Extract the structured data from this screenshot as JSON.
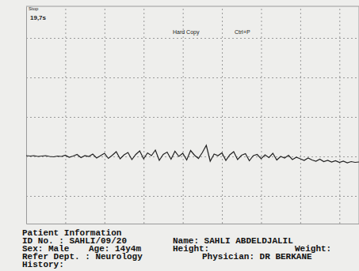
{
  "chart_data": {
    "type": "line",
    "annotations": [
      "Stop",
      "19,7s",
      "Hard Copy",
      "Ctrl+P"
    ],
    "x": [
      0,
      0.1,
      0.2,
      0.3,
      0.4,
      0.5,
      0.6,
      0.7,
      0.8,
      0.9,
      1,
      1.1,
      1.2,
      1.3,
      1.4,
      1.5,
      1.6,
      1.7,
      1.8,
      1.9,
      2,
      2.1,
      2.2,
      2.3,
      2.4,
      2.5,
      2.6,
      2.7,
      2.8,
      2.9,
      3,
      3.1,
      3.2,
      3.3,
      3.4,
      3.5,
      3.6,
      3.7,
      3.8,
      3.9,
      4,
      4.1,
      4.2,
      4.3,
      4.4,
      4.5,
      4.6,
      4.7,
      4.8,
      4.9,
      5,
      5.1,
      5.2,
      5.3,
      5.4,
      5.5,
      5.6,
      5.7,
      5.8,
      5.9,
      6,
      6.1,
      6.2,
      6.3,
      6.4,
      6.5,
      6.6,
      6.7,
      6.8,
      6.9,
      7,
      7.1,
      7.2,
      7.3,
      7.4,
      7.5,
      7.6,
      7.7,
      7.8,
      7.9,
      8,
      8.1,
      8.2,
      8.3,
      8.4,
      8.5
    ],
    "values": [
      0.02,
      0.01,
      0.02,
      0,
      0.01,
      0.02,
      0,
      -0.01,
      0.01,
      0,
      0.03,
      -0.02,
      0.01,
      0.05,
      -0.03,
      0.02,
      0,
      0.06,
      -0.04,
      0.02,
      0.08,
      -0.05,
      0.03,
      0.12,
      -0.06,
      0.04,
      0.1,
      -0.08,
      0.05,
      0.14,
      -0.06,
      0.09,
      0.02,
      0.16,
      -0.1,
      0.05,
      0.11,
      -0.07,
      0.13,
      0,
      0.08,
      -0.09,
      0.15,
      0.03,
      -0.05,
      0.1,
      0.28,
      -0.12,
      0.06,
      0.02,
      0.09,
      -0.1,
      0.04,
      0.12,
      -0.08,
      0.03,
      0.07,
      -0.11,
      0.02,
      0.05,
      -0.06,
      0.04,
      -0.03,
      0.08,
      -0.09,
      0,
      -0.04,
      0.03,
      -0.08,
      -0.02,
      -0.06,
      -0.1,
      -0.04,
      -0.09,
      -0.12,
      -0.07,
      -0.13,
      -0.1,
      -0.14,
      -0.11,
      -0.15,
      -0.12,
      -0.16,
      -0.13,
      -0.15,
      -0.14
    ],
    "color": "#222222",
    "xlim": [
      0,
      8.5
    ],
    "xticks": [
      1,
      2,
      3,
      4,
      5,
      6,
      7,
      8
    ],
    "ylim": [
      -1.7,
      3.8
    ],
    "yticks": [
      -1,
      0,
      1,
      2,
      3
    ],
    "grid": true,
    "tick_labels": false
  },
  "patient_info": {
    "title": "Patient Information",
    "rows": [
      [
        "ID No. : SAHLI/09/20",
        "Name: SAHLI ABDELDJALIL"
      ],
      [
        "Sex: Male",
        "Age: 14y4m",
        "Height:",
        "Weight:"
      ],
      [
        "Refer Dept. : Neurology",
        "Physician: DR BERKANE"
      ],
      [
        "History:"
      ]
    ]
  }
}
